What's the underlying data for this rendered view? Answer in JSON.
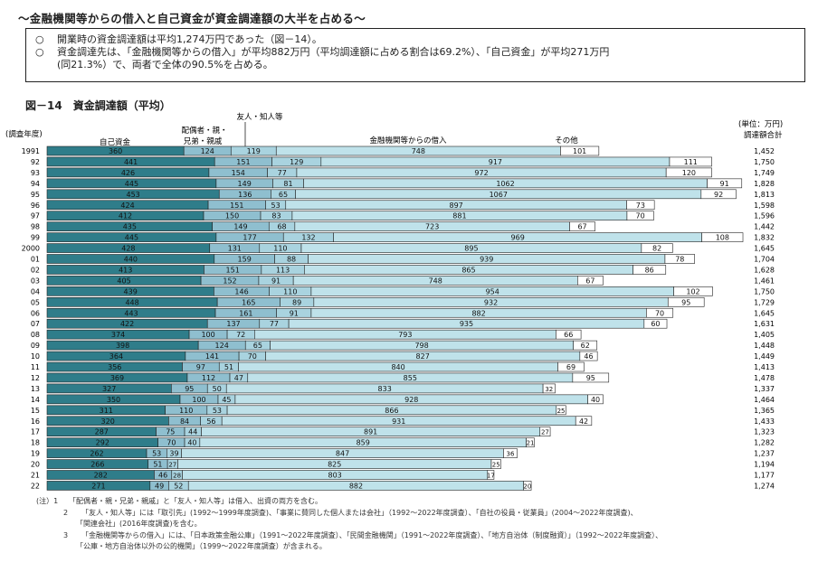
{
  "headline": "～金融機関等からの借入と自己資金が資金調達額の大半を占める～",
  "summary": {
    "bullet": "○",
    "line1": "開業時の資金調達額は平均1,274万円であった（図－14）。",
    "line2": "資金調達先は、「金融機関等からの借入」が平均882万円（平均調達額に占める割合は69.2%）、「自己資金」が平均271万円",
    "line3": "(同21.3%）で、両者で全体の90.5%を占める。"
  },
  "figure_title": "図－14　資金調達額（平均）",
  "header_labels": {
    "year": "(調査年度)",
    "unit": "(単位：万円)",
    "total": "調達額合計",
    "self_funds": "自己資金",
    "family_1": "配偶者・親・",
    "family_2": "兄弟・親戚",
    "friends": "友人・知人等",
    "bank_loans": "金融機関等からの借入",
    "other": "その他"
  },
  "colors": {
    "self_funds": "#2f7d8a",
    "family": "#8fbfcf",
    "friends": "#a9d3df",
    "bank_loans": "#bfe2ea",
    "other": "#ffffff",
    "outline": "#222222"
  },
  "chart_data": {
    "type": "bar",
    "orientation": "horizontal",
    "stacked": true,
    "title": "図－14　資金調達額（平均）",
    "unit": "万円",
    "categories": [
      "1991",
      "92",
      "93",
      "94",
      "95",
      "96",
      "97",
      "98",
      "99",
      "2000",
      "01",
      "02",
      "03",
      "04",
      "05",
      "06",
      "07",
      "08",
      "09",
      "10",
      "11",
      "12",
      "13",
      "14",
      "15",
      "16",
      "17",
      "18",
      "19",
      "20",
      "21",
      "22"
    ],
    "series": [
      {
        "name": "自己資金",
        "values": [
          360,
          441,
          426,
          445,
          453,
          424,
          412,
          435,
          445,
          428,
          440,
          413,
          405,
          439,
          448,
          443,
          422,
          374,
          398,
          364,
          356,
          369,
          327,
          350,
          311,
          320,
          287,
          292,
          262,
          266,
          282,
          271
        ]
      },
      {
        "name": "配偶者・親・兄弟・親戚",
        "values": [
          124,
          151,
          154,
          149,
          136,
          151,
          150,
          149,
          177,
          131,
          159,
          151,
          152,
          146,
          165,
          161,
          137,
          100,
          124,
          141,
          97,
          112,
          95,
          100,
          110,
          84,
          75,
          70,
          53,
          51,
          46,
          49
        ]
      },
      {
        "name": "友人・知人等",
        "values": [
          119,
          129,
          77,
          81,
          65,
          53,
          83,
          68,
          132,
          110,
          88,
          113,
          91,
          110,
          89,
          91,
          77,
          72,
          65,
          70,
          51,
          47,
          50,
          45,
          53,
          56,
          44,
          40,
          39,
          27,
          28,
          52
        ]
      },
      {
        "name": "金融機関等からの借入",
        "values": [
          748,
          917,
          972,
          1062,
          1067,
          897,
          881,
          723,
          969,
          895,
          939,
          865,
          748,
          954,
          932,
          882,
          935,
          793,
          798,
          827,
          840,
          855,
          833,
          928,
          866,
          931,
          891,
          859,
          847,
          825,
          803,
          882
        ]
      },
      {
        "name": "その他",
        "values": [
          101,
          111,
          120,
          91,
          92,
          73,
          70,
          67,
          108,
          82,
          78,
          86,
          67,
          102,
          95,
          70,
          60,
          66,
          62,
          46,
          69,
          95,
          32,
          40,
          25,
          42,
          27,
          21,
          36,
          25,
          17,
          20
        ]
      }
    ],
    "totals": [
      1452,
      1750,
      1749,
      1828,
      1813,
      1598,
      1596,
      1442,
      1832,
      1645,
      1704,
      1628,
      1461,
      1750,
      1729,
      1645,
      1631,
      1405,
      1448,
      1449,
      1413,
      1478,
      1337,
      1464,
      1365,
      1433,
      1323,
      1282,
      1237,
      1194,
      1177,
      1274
    ],
    "legend": "top",
    "grid": false
  },
  "notes": [
    {
      "num": "(注）1",
      "text": "「配偶者・親・兄弟・親戚」と「友人・知人等」は借入、出資の両方を含む。"
    },
    {
      "num": "2",
      "text": "「友人・知人等」には「取引先」(1992～1999年度調査)、「事業に賛同した個人または会社」（1992～2022年度調査）、「自社の役員・従業員」(2004～2022年度調査)、",
      "cont": "「関連会社」(2016年度調査)を含む。"
    },
    {
      "num": "3",
      "text": "「金融機関等からの借入」には、「日本政策金融公庫」（1991～2022年度調査）、「民間金融機関」（1991～2022年度調査）、「地方自治体（制度融資）」（1992～2022年度調査）、",
      "cont": "「公庫・地方自治体以外の公的機関」（1999～2022年度調査）が含まれる。"
    }
  ]
}
